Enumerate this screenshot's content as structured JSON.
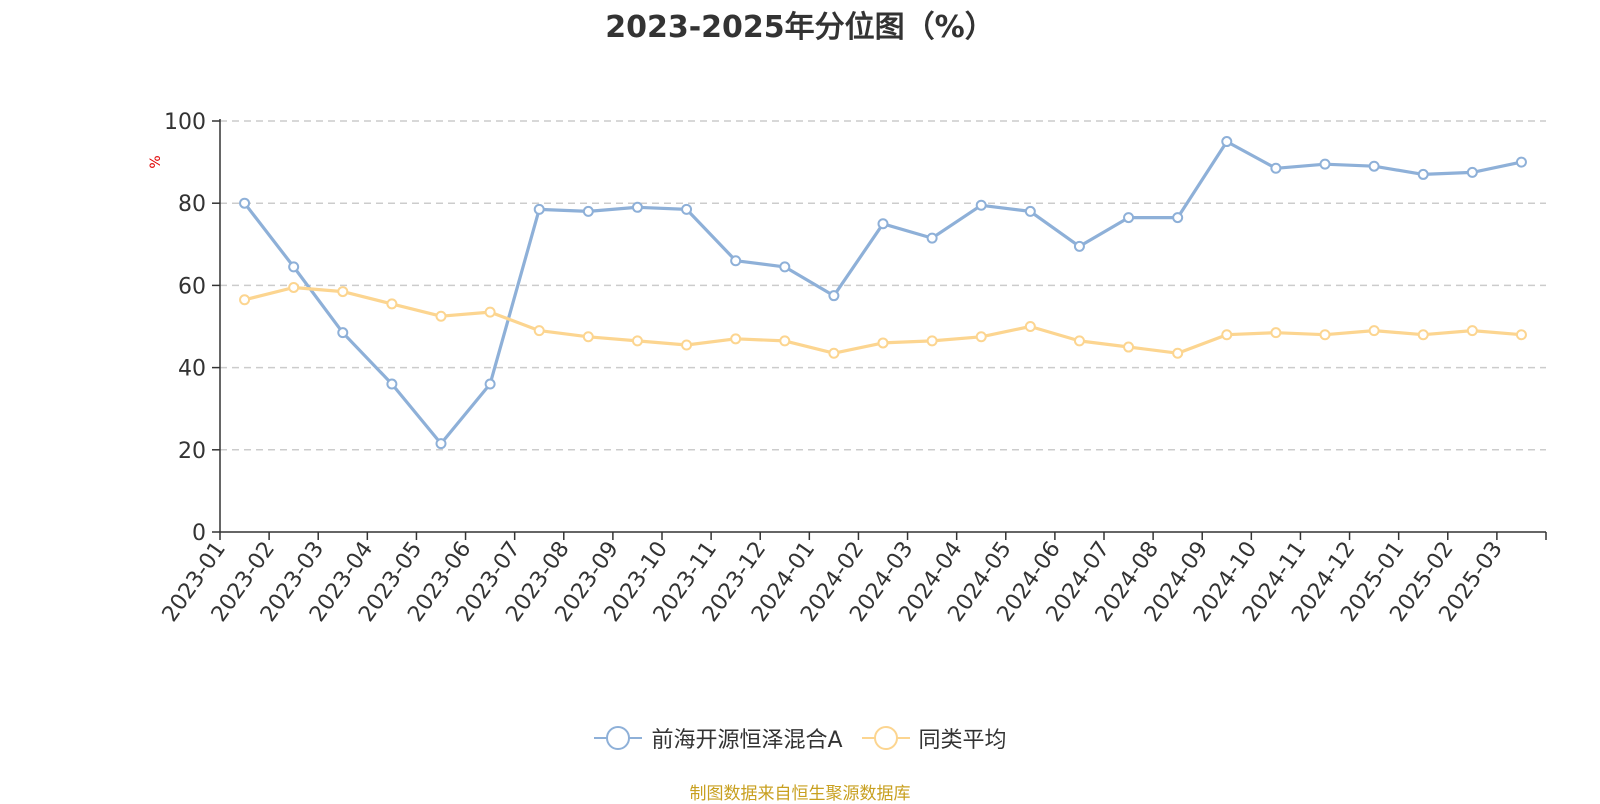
{
  "chart_data": {
    "type": "line",
    "title": "2023-2025年分位图（%）",
    "ylabel": "%",
    "xlabel": "",
    "ylim": [
      0,
      100
    ],
    "yticks": [
      0,
      20,
      40,
      60,
      80,
      100
    ],
    "grid": true,
    "legend_position": "bottom",
    "categories": [
      "2023-01",
      "2023-02",
      "2023-03",
      "2023-04",
      "2023-05",
      "2023-06",
      "2023-07",
      "2023-08",
      "2023-09",
      "2023-10",
      "2023-11",
      "2023-12",
      "2024-01",
      "2024-02",
      "2024-03",
      "2024-04",
      "2024-05",
      "2024-06",
      "2024-07",
      "2024-08",
      "2024-09",
      "2024-10",
      "2024-11",
      "2024-12",
      "2025-01",
      "2025-02",
      "2025-03"
    ],
    "series": [
      {
        "name": "前海开源恒泽混合A",
        "color": "#8eb0d8",
        "values": [
          80,
          64.5,
          48.5,
          36,
          21.5,
          36,
          78.5,
          78,
          79,
          78.5,
          66,
          64.5,
          57.5,
          75,
          71.5,
          79.5,
          78,
          69.5,
          76.5,
          76.5,
          95,
          88.5,
          89.5,
          89,
          87,
          87.5,
          90
        ]
      },
      {
        "name": "同类平均",
        "color": "#fcd590",
        "values": [
          56.5,
          59.5,
          58.5,
          55.5,
          52.5,
          53.5,
          49,
          47.5,
          46.5,
          45.5,
          47,
          46.5,
          43.5,
          46,
          46.5,
          47.5,
          50,
          46.5,
          45,
          43.5,
          48,
          48.5,
          48,
          49,
          48,
          49,
          48
        ]
      }
    ]
  },
  "footer": {
    "source": "制图数据来自恒生聚源数据库"
  }
}
